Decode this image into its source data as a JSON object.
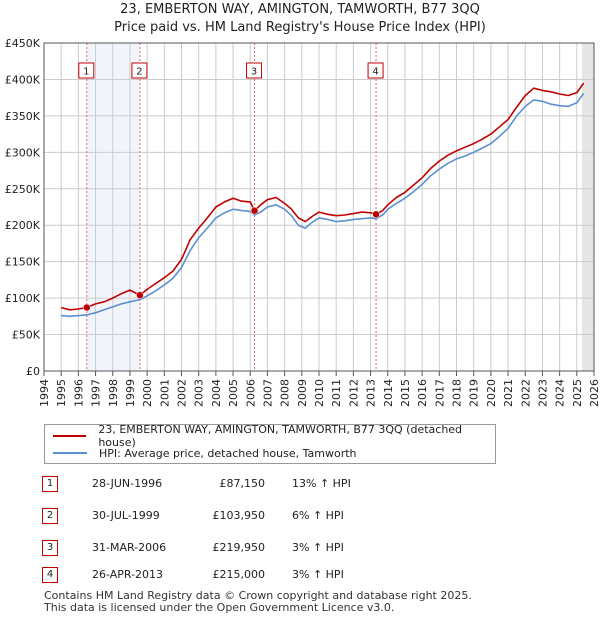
{
  "chart_data": {
    "type": "line",
    "title": "23, EMBERTON WAY, AMINGTON, TAMWORTH, B77 3QQ",
    "subtitle": "Price paid vs. HM Land Registry's House Price Index (HPI)",
    "xlabel": "",
    "ylabel": "",
    "xlim": [
      1994,
      2026
    ],
    "ylim": [
      0,
      450000
    ],
    "grid": true,
    "x_ticks": [
      "1994",
      "1995",
      "1996",
      "1997",
      "1998",
      "1999",
      "2000",
      "2001",
      "2002",
      "2003",
      "2004",
      "2005",
      "2006",
      "2007",
      "2008",
      "2009",
      "2010",
      "2011",
      "2012",
      "2013",
      "2014",
      "2015",
      "2016",
      "2017",
      "2018",
      "2019",
      "2020",
      "2021",
      "2022",
      "2023",
      "2024",
      "2025",
      "2026"
    ],
    "y_ticks": [
      {
        "value": 0,
        "label": "£0"
      },
      {
        "value": 50000,
        "label": "£50K"
      },
      {
        "value": 100000,
        "label": "£100K"
      },
      {
        "value": 150000,
        "label": "£150K"
      },
      {
        "value": 200000,
        "label": "£200K"
      },
      {
        "value": 250000,
        "label": "£250K"
      },
      {
        "value": 300000,
        "label": "£300K"
      },
      {
        "value": 350000,
        "label": "£350K"
      },
      {
        "value": 400000,
        "label": "£400K"
      },
      {
        "value": 450000,
        "label": "£450K"
      }
    ],
    "series": [
      {
        "name": "23, EMBERTON WAY, AMINGTON, TAMWORTH, B77 3QQ (detached house)",
        "color": "#c00000",
        "x": [
          1995.0,
          1995.5,
          1996.0,
          1996.49,
          1997.0,
          1997.5,
          1998.0,
          1998.5,
          1999.0,
          1999.58,
          2000.0,
          2000.5,
          2001.0,
          2001.5,
          2002.0,
          2002.5,
          2003.0,
          2003.5,
          2004.0,
          2004.5,
          2005.0,
          2005.5,
          2006.0,
          2006.25,
          2006.6,
          2007.0,
          2007.5,
          2008.0,
          2008.4,
          2008.8,
          2009.2,
          2009.6,
          2010.0,
          2010.5,
          2011.0,
          2011.5,
          2012.0,
          2012.5,
          2013.0,
          2013.32,
          2013.7,
          2014.0,
          2014.5,
          2015.0,
          2015.5,
          2016.0,
          2016.5,
          2017.0,
          2017.5,
          2018.0,
          2018.5,
          2019.0,
          2019.5,
          2020.0,
          2020.5,
          2021.0,
          2021.5,
          2022.0,
          2022.5,
          2023.0,
          2023.5,
          2024.0,
          2024.5,
          2025.0,
          2025.4
        ],
        "values": [
          87000,
          84000,
          85000,
          87150,
          92000,
          95000,
          100000,
          106000,
          111000,
          103950,
          112000,
          120000,
          128000,
          137000,
          153000,
          180000,
          196000,
          210000,
          225000,
          232000,
          237000,
          233000,
          232000,
          219950,
          228000,
          235000,
          238000,
          230000,
          222000,
          210000,
          205000,
          212000,
          218000,
          215000,
          213000,
          214000,
          216000,
          218000,
          217000,
          215000,
          220000,
          228000,
          238000,
          245000,
          255000,
          265000,
          278000,
          288000,
          296000,
          302000,
          307000,
          312000,
          318000,
          325000,
          335000,
          345000,
          362000,
          378000,
          388000,
          385000,
          383000,
          380000,
          378000,
          382000,
          395000
        ]
      },
      {
        "name": "HPI: Average price, detached house, Tamworth",
        "color": "#5b8fd0",
        "x": [
          1995.0,
          1995.5,
          1996.0,
          1996.49,
          1997.0,
          1997.5,
          1998.0,
          1998.5,
          1999.0,
          1999.58,
          2000.0,
          2000.5,
          2001.0,
          2001.5,
          2002.0,
          2002.5,
          2003.0,
          2003.5,
          2004.0,
          2004.5,
          2005.0,
          2005.5,
          2006.0,
          2006.25,
          2006.6,
          2007.0,
          2007.5,
          2008.0,
          2008.4,
          2008.8,
          2009.2,
          2009.6,
          2010.0,
          2010.5,
          2011.0,
          2011.5,
          2012.0,
          2012.5,
          2013.0,
          2013.32,
          2013.7,
          2014.0,
          2014.5,
          2015.0,
          2015.5,
          2016.0,
          2016.5,
          2017.0,
          2017.5,
          2018.0,
          2018.5,
          2019.0,
          2019.5,
          2020.0,
          2020.5,
          2021.0,
          2021.5,
          2022.0,
          2022.5,
          2023.0,
          2023.5,
          2024.0,
          2024.5,
          2025.0,
          2025.4
        ],
        "values": [
          76000,
          75000,
          76000,
          77000,
          80000,
          84000,
          88000,
          92000,
          95000,
          98000,
          103000,
          110000,
          118000,
          127000,
          142000,
          165000,
          183000,
          196000,
          210000,
          217000,
          222000,
          220000,
          219000,
          214000,
          218000,
          225000,
          228000,
          222000,
          213000,
          200000,
          196000,
          204000,
          210000,
          208000,
          205000,
          206000,
          208000,
          209000,
          210000,
          209000,
          214000,
          222000,
          230000,
          237000,
          246000,
          256000,
          268000,
          277000,
          285000,
          291000,
          295000,
          300000,
          306000,
          312000,
          322000,
          333000,
          350000,
          363000,
          372000,
          370000,
          366000,
          364000,
          363000,
          368000,
          381000
        ]
      }
    ],
    "sales": [
      {
        "id": "1",
        "x": 1996.49,
        "value": 87150
      },
      {
        "id": "2",
        "x": 1999.58,
        "value": 103950
      },
      {
        "id": "3",
        "x": 2006.25,
        "value": 219950
      },
      {
        "id": "4",
        "x": 2013.32,
        "value": 215000
      }
    ]
  },
  "legend": {
    "red_label": "23, EMBERTON WAY, AMINGTON, TAMWORTH, B77 3QQ (detached house)",
    "blue_label": "HPI: Average price, detached house, Tamworth"
  },
  "sales_table": [
    {
      "num": "1",
      "date": "28-JUN-1996",
      "price": "£87,150",
      "hpi": "13% ↑ HPI"
    },
    {
      "num": "2",
      "date": "30-JUL-1999",
      "price": "£103,950",
      "hpi": "6% ↑ HPI"
    },
    {
      "num": "3",
      "date": "31-MAR-2006",
      "price": "£219,950",
      "hpi": "3% ↑ HPI"
    },
    {
      "num": "4",
      "date": "26-APR-2013",
      "price": "£215,000",
      "hpi": "3% ↑ HPI"
    }
  ],
  "footer": {
    "line1": "Contains HM Land Registry data © Crown copyright and database right 2025.",
    "line2": "This data is licensed under the Open Government Licence v3.0."
  },
  "colors": {
    "property": "#c00000",
    "hpi": "#5b8fd0",
    "future_shade": "#e6e6e6",
    "sale_shade": "#e8eef8"
  }
}
